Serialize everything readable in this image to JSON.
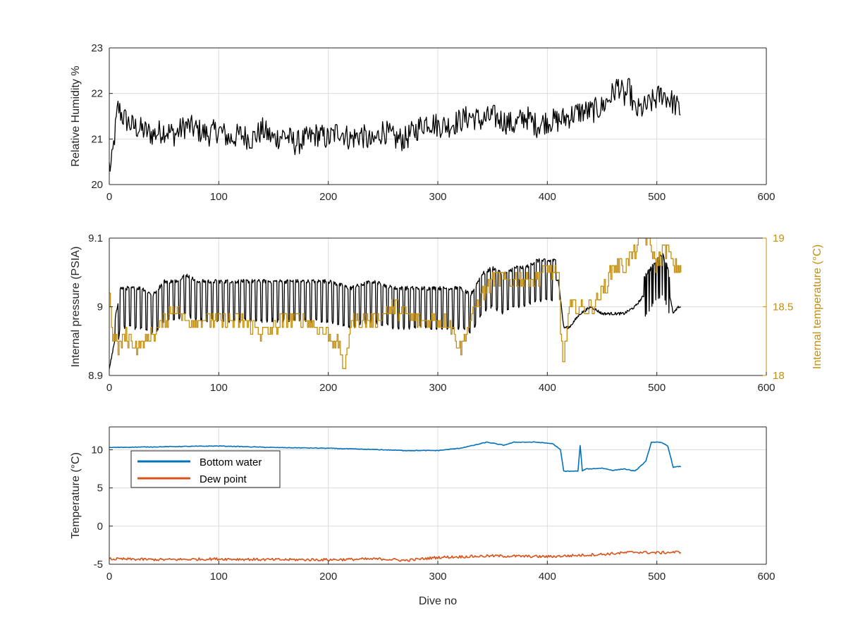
{
  "chart_data": [
    {
      "type": "line",
      "xlabel": "",
      "ylabel": "Relative Humidity %",
      "xlim": [
        0,
        600
      ],
      "ylim": [
        20,
        23
      ],
      "xticks": [
        0,
        100,
        200,
        300,
        400,
        500,
        600
      ],
      "yticks": [
        20,
        21,
        22,
        23
      ],
      "xtick_labels": [
        "0",
        "100",
        "200",
        "300",
        "400",
        "500",
        "600"
      ],
      "ytick_labels": [
        "20",
        "21",
        "22",
        "23"
      ],
      "grid": true,
      "series": [
        {
          "color": "#000000",
          "x": [
            0,
            2,
            5,
            8,
            12,
            20,
            30,
            40,
            50,
            60,
            70,
            80,
            90,
            100,
            110,
            120,
            130,
            140,
            150,
            160,
            170,
            180,
            190,
            200,
            210,
            220,
            230,
            240,
            250,
            260,
            270,
            280,
            290,
            300,
            310,
            320,
            330,
            340,
            350,
            360,
            370,
            380,
            390,
            400,
            410,
            420,
            430,
            440,
            450,
            460,
            465,
            470,
            475,
            480,
            490,
            500,
            505,
            510,
            515,
            522
          ],
          "y": [
            20.4,
            20.4,
            21.1,
            21.7,
            21.5,
            21.3,
            21.2,
            21.1,
            21.2,
            21.1,
            21.3,
            21.2,
            21.1,
            21.2,
            21.0,
            21.1,
            21.0,
            21.2,
            21.0,
            21.1,
            20.9,
            21.0,
            21.1,
            21.0,
            21.2,
            21.0,
            21.1,
            20.9,
            21.2,
            21.0,
            21.0,
            21.2,
            21.4,
            21.3,
            21.3,
            21.4,
            21.5,
            21.4,
            21.5,
            21.4,
            21.3,
            21.5,
            21.3,
            21.4,
            21.4,
            21.5,
            21.6,
            21.6,
            21.7,
            22.0,
            22.2,
            21.9,
            22.1,
            21.6,
            21.7,
            21.9,
            22.0,
            21.9,
            21.8,
            21.6
          ]
        }
      ]
    },
    {
      "type": "line",
      "xlabel": "",
      "ylabel": "Internal pressure (PSIA)",
      "ylabel_right": "Internal temperature (°C)",
      "xlim": [
        0,
        600
      ],
      "ylim": [
        8.9,
        9.1
      ],
      "ylim_right": [
        18,
        19
      ],
      "xticks": [
        0,
        100,
        200,
        300,
        400,
        500,
        600
      ],
      "yticks": [
        8.9,
        9.0,
        9.1
      ],
      "yticks_right": [
        18,
        18.5,
        19
      ],
      "xtick_labels": [
        "0",
        "100",
        "200",
        "300",
        "400",
        "500",
        "600"
      ],
      "ytick_labels": [
        "8.9",
        "9",
        "9.1"
      ],
      "ytick_labels_right": [
        "18",
        "18.5",
        "19"
      ],
      "grid": true,
      "right_axis_color": "#c48f0f",
      "series": [
        {
          "axis": "left",
          "color": "#000000",
          "x": [
            0,
            5,
            10,
            20,
            30,
            40,
            50,
            60,
            70,
            80,
            100,
            120,
            150,
            180,
            200,
            220,
            240,
            260,
            280,
            300,
            320,
            330,
            340,
            350,
            360,
            370,
            380,
            390,
            400,
            405,
            410,
            415,
            420,
            430,
            440,
            450,
            460,
            470,
            480,
            490,
            500,
            505,
            510,
            515,
            520,
            522
          ],
          "y": [
            8.91,
            8.95,
            9.0,
            9.0,
            9.0,
            8.99,
            9.01,
            9.01,
            9.02,
            9.01,
            9.01,
            9.01,
            9.01,
            9.01,
            9.01,
            9.0,
            9.01,
            9.0,
            9.0,
            9.0,
            9.0,
            8.99,
            9.02,
            9.03,
            9.02,
            9.03,
            9.03,
            9.04,
            9.04,
            9.04,
            9.04,
            8.97,
            8.97,
            8.99,
            9.0,
            8.99,
            8.99,
            8.99,
            9.0,
            9.02,
            9.04,
            9.05,
            9.03,
            8.99,
            9.0,
            9.0
          ]
        },
        {
          "axis": "right",
          "color": "#c48f0f",
          "x": [
            0,
            3,
            8,
            15,
            25,
            40,
            50,
            60,
            70,
            80,
            100,
            120,
            140,
            160,
            180,
            200,
            210,
            215,
            220,
            240,
            260,
            280,
            300,
            310,
            320,
            330,
            340,
            350,
            360,
            370,
            380,
            390,
            400,
            410,
            412,
            415,
            420,
            430,
            440,
            450,
            460,
            470,
            480,
            485,
            490,
            495,
            500,
            505,
            510,
            515,
            520,
            522
          ],
          "y": [
            18.6,
            18.3,
            18.2,
            18.3,
            18.2,
            18.3,
            18.4,
            18.5,
            18.4,
            18.4,
            18.4,
            18.4,
            18.3,
            18.4,
            18.4,
            18.3,
            18.2,
            18.0,
            18.4,
            18.4,
            18.5,
            18.4,
            18.4,
            18.4,
            18.2,
            18.4,
            18.6,
            18.7,
            18.7,
            18.7,
            18.7,
            18.7,
            18.8,
            18.7,
            18.3,
            18.1,
            18.5,
            18.5,
            18.5,
            18.6,
            18.8,
            18.8,
            18.9,
            19.0,
            19.0,
            18.9,
            18.8,
            18.9,
            18.9,
            18.8,
            18.8,
            18.8
          ]
        }
      ]
    },
    {
      "type": "line",
      "xlabel": "Dive no",
      "ylabel": "Temperature (°C)",
      "xlim": [
        0,
        600
      ],
      "ylim": [
        -5,
        13
      ],
      "xticks": [
        0,
        100,
        200,
        300,
        400,
        500,
        600
      ],
      "yticks": [
        -5,
        0,
        5,
        10
      ],
      "xtick_labels": [
        "0",
        "100",
        "200",
        "300",
        "400",
        "500",
        "600"
      ],
      "ytick_labels": [
        "-5",
        "0",
        "5",
        "10"
      ],
      "grid": true,
      "legend": "top-left",
      "series": [
        {
          "name": "Bottom water",
          "color": "#0072bd",
          "x": [
            0,
            50,
            100,
            150,
            200,
            250,
            270,
            300,
            320,
            330,
            345,
            360,
            370,
            390,
            405,
            412,
            415,
            420,
            428,
            430,
            432,
            435,
            440,
            450,
            460,
            470,
            480,
            490,
            495,
            500,
            505,
            510,
            515,
            520,
            522
          ],
          "y": [
            10.3,
            10.4,
            10.5,
            10.3,
            10.2,
            10.0,
            9.9,
            9.9,
            10.2,
            10.5,
            11.0,
            10.6,
            11.0,
            11.0,
            10.8,
            10.0,
            7.2,
            7.2,
            7.2,
            10.6,
            7.2,
            7.5,
            7.5,
            7.6,
            7.3,
            7.5,
            7.2,
            8.5,
            11.0,
            11.0,
            10.9,
            10.5,
            7.7,
            7.8,
            7.8
          ]
        },
        {
          "name": "Dew point",
          "color": "#d95319",
          "x": [
            0,
            50,
            100,
            150,
            200,
            250,
            270,
            300,
            350,
            400,
            450,
            480,
            500,
            522
          ],
          "y": [
            -4.3,
            -4.4,
            -4.3,
            -4.4,
            -4.4,
            -4.3,
            -4.5,
            -4.1,
            -3.9,
            -4.0,
            -3.7,
            -3.4,
            -3.5,
            -3.4
          ]
        }
      ]
    }
  ]
}
